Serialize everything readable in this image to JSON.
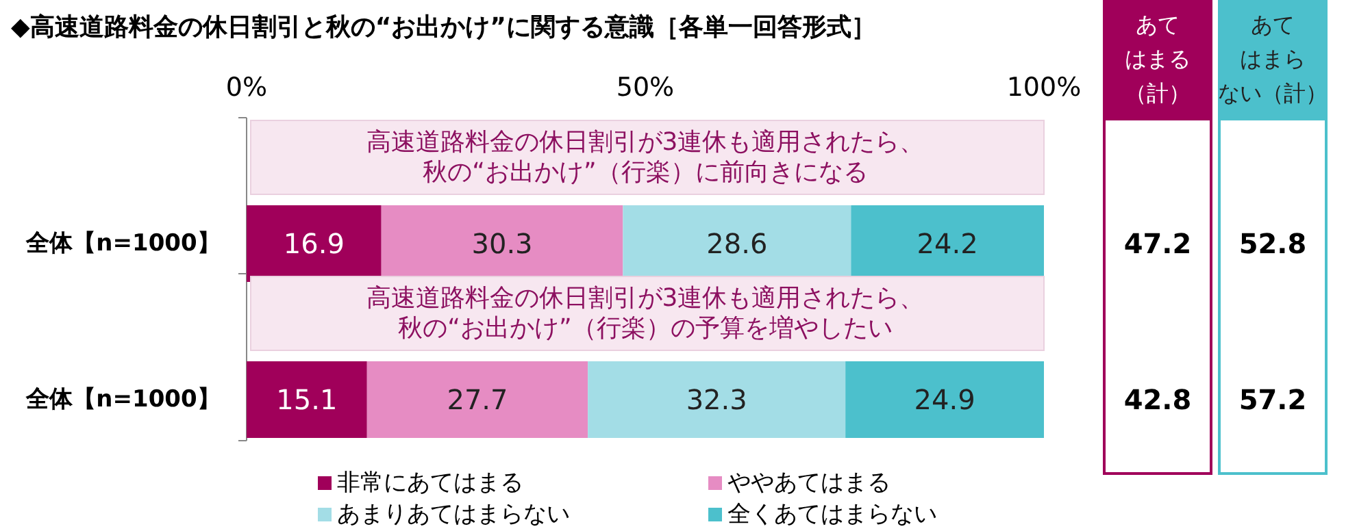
{
  "chart_data": {
    "type": "bar",
    "orientation": "horizontal",
    "stacked": true,
    "title": "◆高速道路料金の休日割引と秋の“お出かけ”に関する意識［各単一回答形式］",
    "categories": [
      "全体【n=1000】",
      "全体【n=1000】"
    ],
    "series": [
      {
        "name": "非常にあてはまる",
        "color": "#a0005a",
        "values": [
          16.9,
          15.1
        ]
      },
      {
        "name": "ややあてはまる",
        "color": "#e68cc3",
        "values": [
          30.3,
          27.7
        ]
      },
      {
        "name": "あまりあてはまらない",
        "color": "#a3dde6",
        "values": [
          28.6,
          32.3
        ]
      },
      {
        "name": "全くあてはまらない",
        "color": "#4cc0cc",
        "values": [
          24.2,
          24.9
        ]
      }
    ],
    "xlim": [
      0,
      100
    ],
    "xticks": [
      {
        "value": 0,
        "label": "0%"
      },
      {
        "value": 50,
        "label": "50%"
      },
      {
        "value": 100,
        "label": "100%"
      }
    ],
    "data_labels": true,
    "legend": "bottom",
    "annotations": [
      "高速道路料金の休日割引が3連休も適用されたら、",
      "秋の“お出かけ”（行楽）に前向きになる",
      "高速道路料金の休日割引が3連休も適用されたら、",
      "秋の“お出かけ”（行楽）の予算を増やしたい",
      "あて",
      "はまる",
      "（計）",
      "あて",
      "はまら",
      "ない（計）",
      "47.2",
      "42.8",
      "52.8",
      "57.2"
    ]
  }
}
